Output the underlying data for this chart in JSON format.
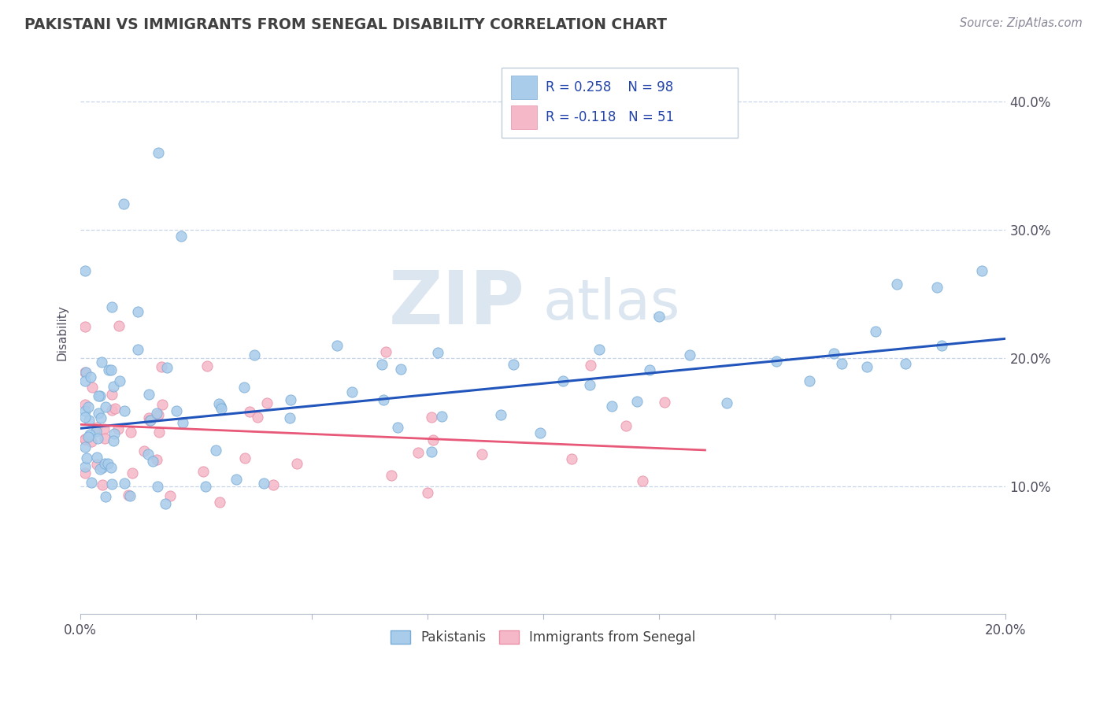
{
  "title": "PAKISTANI VS IMMIGRANTS FROM SENEGAL DISABILITY CORRELATION CHART",
  "source": "Source: ZipAtlas.com",
  "ylabel": "Disability",
  "xlim": [
    0.0,
    0.2
  ],
  "ylim": [
    0.0,
    0.44
  ],
  "xtick_positions": [
    0.0,
    0.025,
    0.05,
    0.075,
    0.1,
    0.125,
    0.15,
    0.175,
    0.2
  ],
  "ytick_positions_right": [
    0.1,
    0.2,
    0.3,
    0.4
  ],
  "ytick_labels_right": [
    "10.0%",
    "20.0%",
    "30.0%",
    "40.0%"
  ],
  "blue_color": "#a8ccea",
  "pink_color": "#f5b8c8",
  "blue_edge": "#7aadd8",
  "pink_edge": "#e890a8",
  "trend_blue": "#2255bb",
  "trend_pink": "#e85878",
  "legend_r1": "R = 0.258",
  "legend_n1": "N = 98",
  "legend_r2": "R = -0.118",
  "legend_n2": "N = 51",
  "legend_label1": "Pakistanis",
  "legend_label2": "Immigrants from Senegal",
  "watermark_zip": "ZIP",
  "watermark_atlas": "atlas",
  "grid_color": "#c8d4e8",
  "bg_color": "#ffffff",
  "title_color": "#404040",
  "axis_color": "#b0b8c8",
  "blue_trend_x": [
    0.0,
    0.2
  ],
  "blue_trend_y": [
    0.145,
    0.215
  ],
  "pink_trend_x": [
    0.0,
    0.135
  ],
  "pink_trend_y": [
    0.148,
    0.128
  ]
}
